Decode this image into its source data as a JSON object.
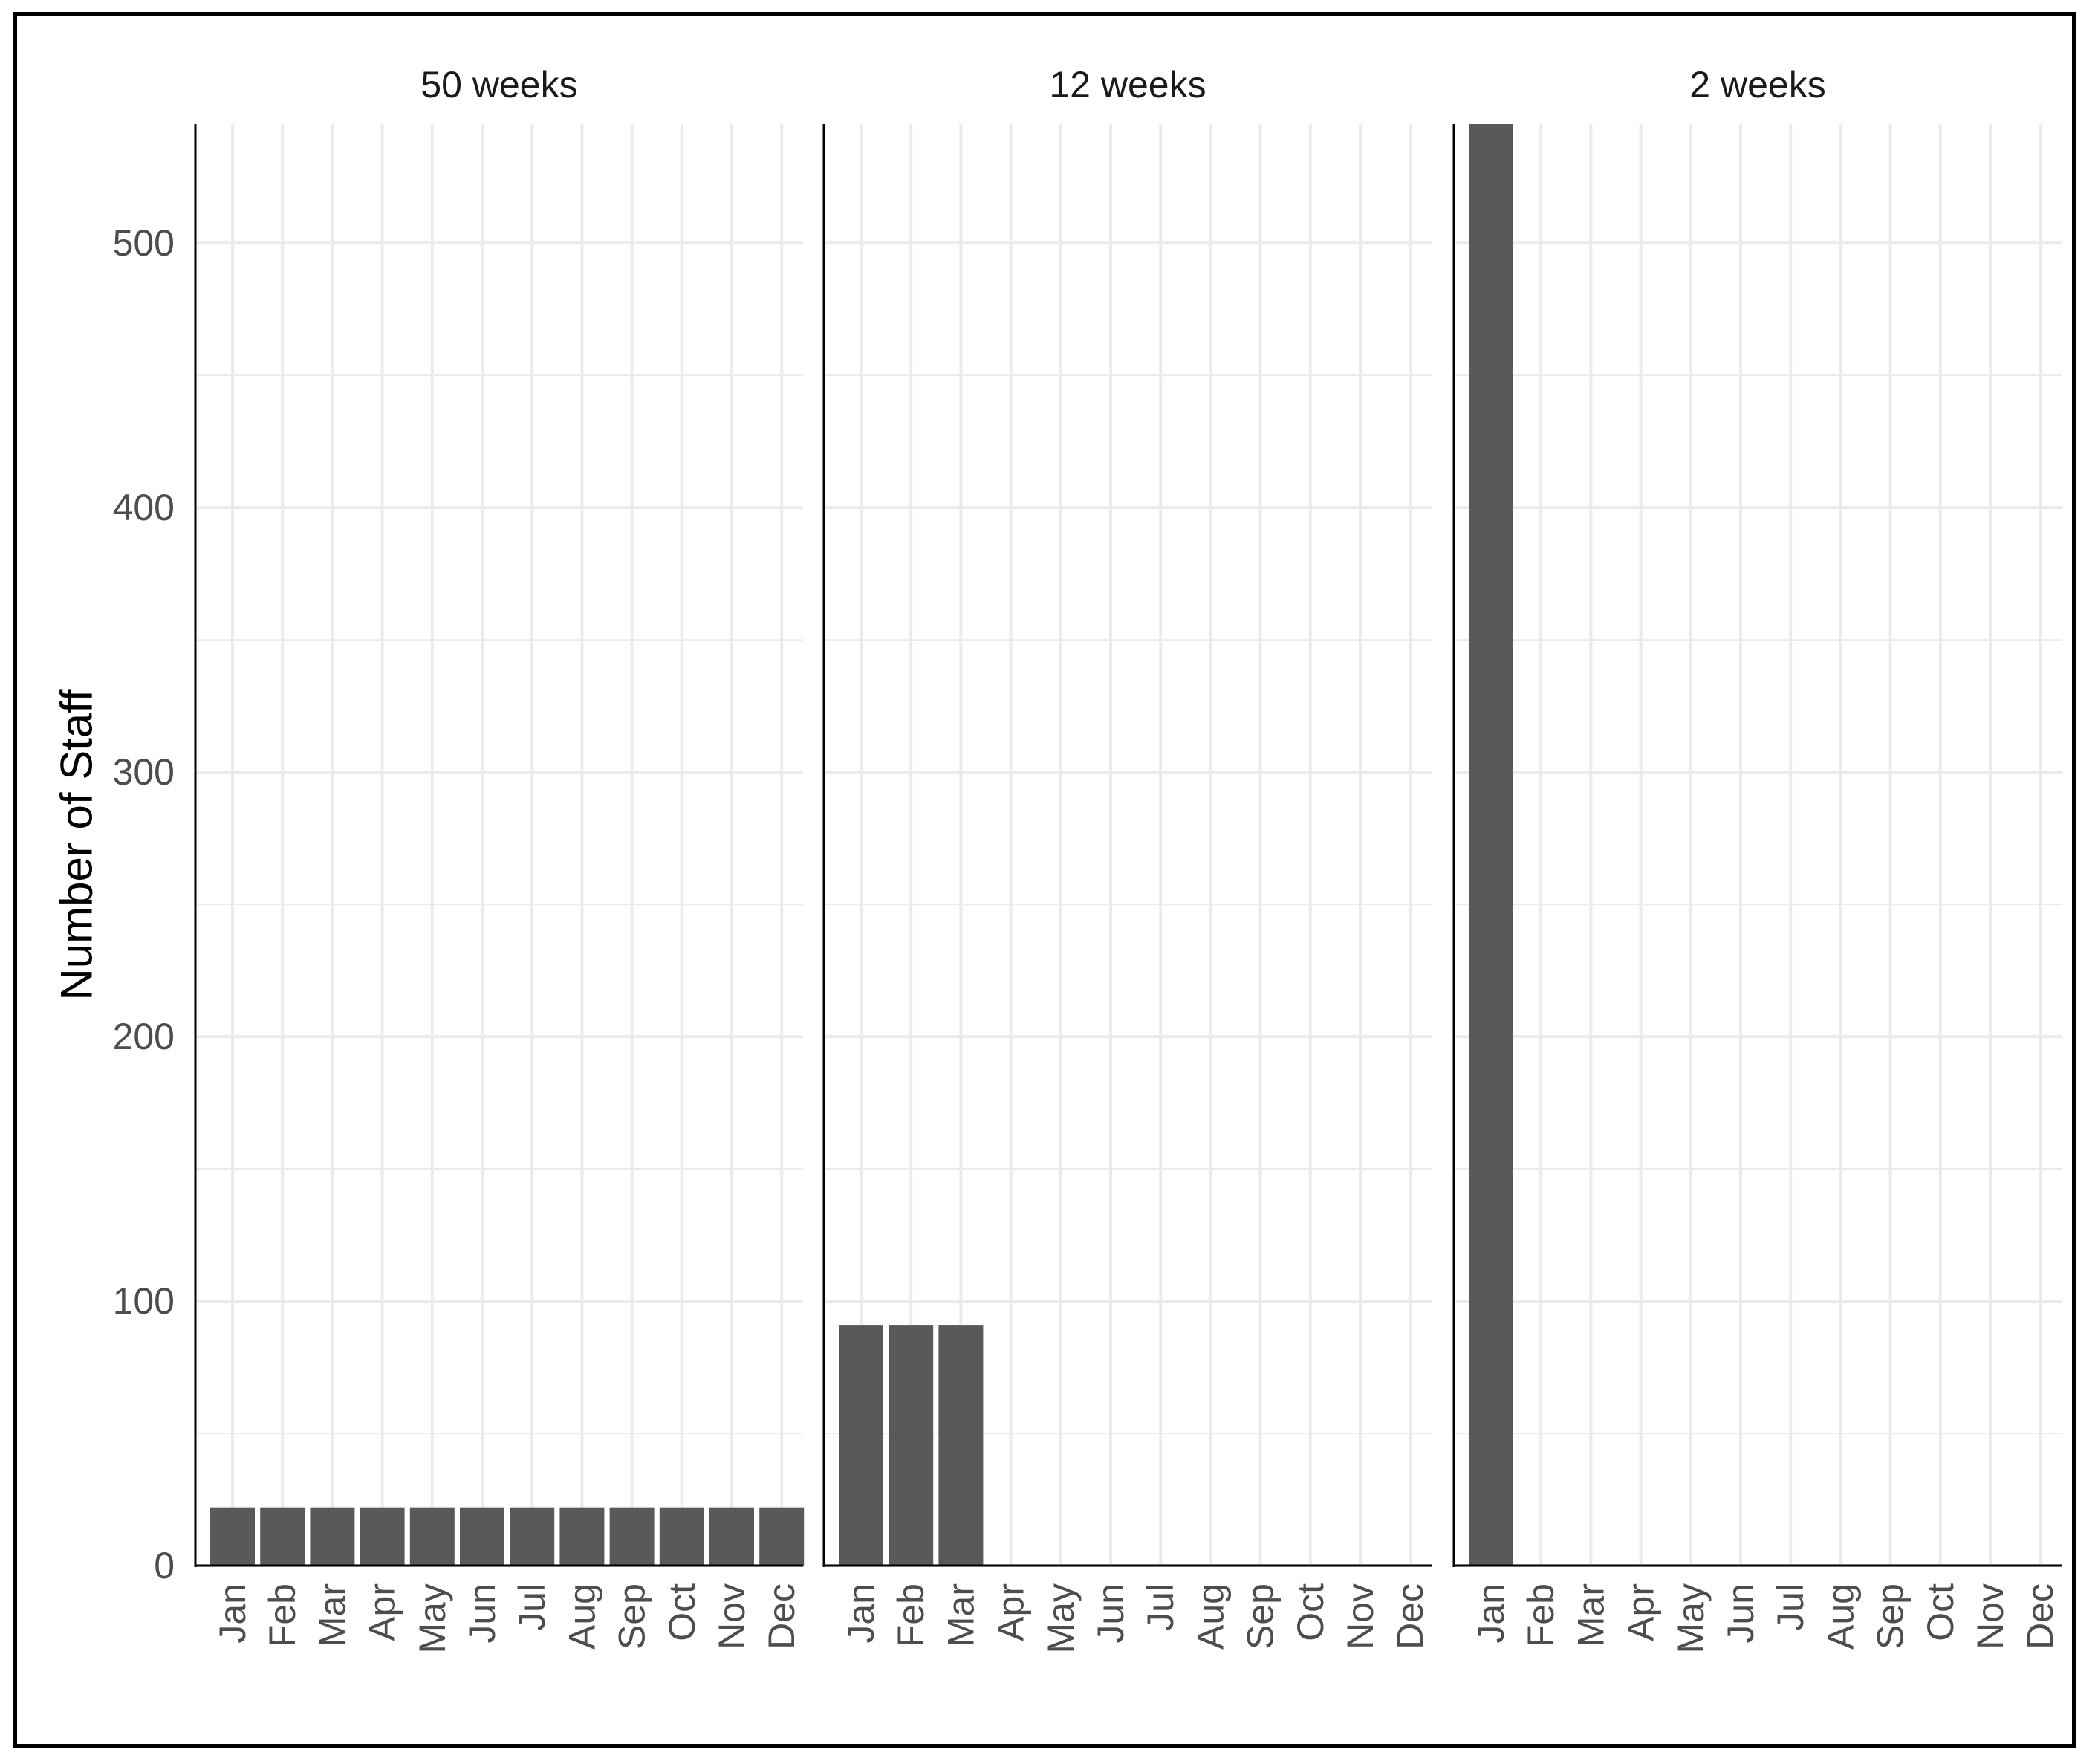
{
  "chart_data": {
    "type": "bar",
    "facet_type": "facet_wrap",
    "ylabel": "Number of Staff",
    "xlabel": "",
    "ylim": [
      0,
      545
    ],
    "yticks": [
      0,
      100,
      200,
      300,
      400,
      500
    ],
    "grid": true,
    "bar_color": "#595959",
    "grid_color": "#ebebeb",
    "categories": [
      "Jan",
      "Feb",
      "Mar",
      "Apr",
      "May",
      "Jun",
      "Jul",
      "Aug",
      "Sep",
      "Oct",
      "Nov",
      "Dec"
    ],
    "panels": [
      {
        "title": "50 weeks",
        "values": [
          22,
          22,
          22,
          22,
          22,
          22,
          22,
          22,
          22,
          22,
          22,
          22
        ]
      },
      {
        "title": "12 weeks",
        "values": [
          91,
          91,
          91,
          0,
          0,
          0,
          0,
          0,
          0,
          0,
          0,
          0
        ]
      },
      {
        "title": "2 weeks",
        "values": [
          545,
          0,
          0,
          0,
          0,
          0,
          0,
          0,
          0,
          0,
          0,
          0
        ]
      }
    ]
  }
}
